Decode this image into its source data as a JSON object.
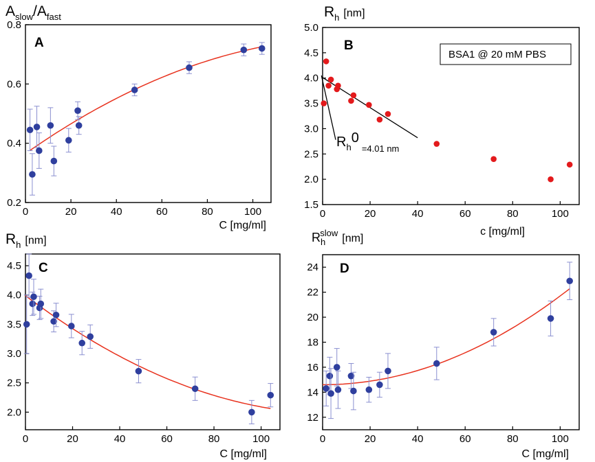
{
  "chart_data": [
    {
      "id": "A",
      "type": "scatter",
      "panel_label": "A",
      "title_main": "A",
      "title_sub1": "slow",
      "title_sep": "/A",
      "title_sub2": "fast",
      "xlabel": "C [mg/ml]",
      "xlim": [
        0,
        108
      ],
      "ylim": [
        0.2,
        0.8
      ],
      "xticks": [
        0,
        20,
        40,
        60,
        80,
        100
      ],
      "yticks": [
        0.2,
        0.4,
        0.6,
        0.8
      ],
      "ytick_labels": [
        "0.2",
        "0.4",
        "0.6",
        "0.8"
      ],
      "points": [
        {
          "x": 2,
          "y": 0.445,
          "err": 0.07
        },
        {
          "x": 3,
          "y": 0.295,
          "err": 0.07
        },
        {
          "x": 5,
          "y": 0.455,
          "err": 0.07
        },
        {
          "x": 6,
          "y": 0.375,
          "err": 0.06
        },
        {
          "x": 11,
          "y": 0.46,
          "err": 0.06
        },
        {
          "x": 12.5,
          "y": 0.34,
          "err": 0.05
        },
        {
          "x": 19,
          "y": 0.41,
          "err": 0.04
        },
        {
          "x": 23,
          "y": 0.51,
          "err": 0.03
        },
        {
          "x": 23.5,
          "y": 0.46,
          "err": 0.03
        },
        {
          "x": 48,
          "y": 0.58,
          "err": 0.02
        },
        {
          "x": 72,
          "y": 0.655,
          "err": 0.02
        },
        {
          "x": 96,
          "y": 0.715,
          "err": 0.02
        },
        {
          "x": 104,
          "y": 0.72,
          "err": 0.02
        }
      ],
      "fit_poly": [
        0.365,
        0.0054,
        -1.86e-05
      ],
      "fit_range": [
        2,
        104
      ]
    },
    {
      "id": "B",
      "type": "scatter",
      "panel_label": "B",
      "title_main": "R",
      "title_sub": "h",
      "title_unit": "[nm]",
      "xlabel": "c [mg/ml]",
      "xlim": [
        0,
        108
      ],
      "ylim": [
        1.5,
        5.0
      ],
      "xticks": [
        0,
        20,
        40,
        60,
        80,
        100
      ],
      "yticks": [
        1.5,
        2.0,
        2.5,
        3.0,
        3.5,
        4.0,
        4.5,
        5.0
      ],
      "ytick_labels": [
        "1.5",
        "2.0",
        "2.5",
        "3.0",
        "3.5",
        "4.0",
        "4.5",
        "5.0"
      ],
      "legend": "BSA1 @ 20 mM PBS",
      "points": [
        {
          "x": 0.5,
          "y": 3.5
        },
        {
          "x": 1.5,
          "y": 4.33
        },
        {
          "x": 2.5,
          "y": 3.85
        },
        {
          "x": 3.5,
          "y": 3.97
        },
        {
          "x": 6,
          "y": 3.78
        },
        {
          "x": 6.5,
          "y": 3.85
        },
        {
          "x": 12,
          "y": 3.55
        },
        {
          "x": 13,
          "y": 3.66
        },
        {
          "x": 19.5,
          "y": 3.47
        },
        {
          "x": 24,
          "y": 3.18
        },
        {
          "x": 27.5,
          "y": 3.29
        },
        {
          "x": 48,
          "y": 2.7
        },
        {
          "x": 72,
          "y": 2.4
        },
        {
          "x": 96,
          "y": 2.0
        },
        {
          "x": 104,
          "y": 2.29
        }
      ],
      "fit_line": {
        "x0": 0,
        "y0": 4.01,
        "x1": 40,
        "y1": 2.82
      },
      "annotation_main": "R",
      "annotation_sub": "h",
      "annotation_sup": "0",
      "annotation_value": "=4.01 nm",
      "annotation_pointer": {
        "x0": -0.5,
        "y0": 4.05,
        "x1": 5.5,
        "y1": 2.78
      }
    },
    {
      "id": "C",
      "type": "scatter",
      "panel_label": "C",
      "title_main": "R",
      "title_sub": "h",
      "title_unit": "[nm]",
      "xlabel": "C [mg/ml]",
      "xlim": [
        0,
        108
      ],
      "ylim": [
        1.7,
        4.7
      ],
      "xticks": [
        0,
        20,
        40,
        60,
        80,
        100
      ],
      "yticks": [
        2.0,
        2.5,
        3.0,
        3.5,
        4.0,
        4.5
      ],
      "ytick_labels": [
        "2.0",
        "2.5",
        "3.0",
        "3.5",
        "4.0",
        "4.5"
      ],
      "points": [
        {
          "x": 0.5,
          "y": 3.5,
          "err": 0.5
        },
        {
          "x": 1.5,
          "y": 4.33,
          "err": 0.37
        },
        {
          "x": 3,
          "y": 3.85,
          "err": 0.2
        },
        {
          "x": 3.5,
          "y": 3.97,
          "err": 0.3
        },
        {
          "x": 6,
          "y": 3.78,
          "err": 0.2
        },
        {
          "x": 6.5,
          "y": 3.85,
          "err": 0.25
        },
        {
          "x": 12,
          "y": 3.55,
          "err": 0.18
        },
        {
          "x": 13,
          "y": 3.66,
          "err": 0.2
        },
        {
          "x": 19.5,
          "y": 3.47,
          "err": 0.2
        },
        {
          "x": 24,
          "y": 3.18,
          "err": 0.2
        },
        {
          "x": 27.5,
          "y": 3.29,
          "err": 0.2
        },
        {
          "x": 48,
          "y": 2.7,
          "err": 0.2
        },
        {
          "x": 72,
          "y": 2.4,
          "err": 0.2
        },
        {
          "x": 96,
          "y": 2.0,
          "err": 0.2
        },
        {
          "x": 104,
          "y": 2.29,
          "err": 0.2
        }
      ],
      "fit_poly": [
        3.99,
        -0.0305,
        0.000115
      ],
      "fit_range": [
        0,
        104
      ]
    },
    {
      "id": "D",
      "type": "scatter",
      "panel_label": "D",
      "title_main": "R",
      "title_sub": "h",
      "title_sup": "slow",
      "title_unit": "[nm]",
      "xlabel": "C [mg/ml]",
      "xlim": [
        0,
        108
      ],
      "ylim": [
        11,
        25
      ],
      "xticks": [
        0,
        20,
        40,
        60,
        80,
        100
      ],
      "yticks": [
        12,
        14,
        16,
        18,
        20,
        22,
        24
      ],
      "ytick_labels": [
        "12",
        "14",
        "16",
        "18",
        "20",
        "22",
        "24"
      ],
      "points": [
        {
          "x": 1.5,
          "y": 14.3,
          "err": 1.4
        },
        {
          "x": 3,
          "y": 15.3,
          "err": 1.5
        },
        {
          "x": 3.5,
          "y": 13.9,
          "err": 2.0
        },
        {
          "x": 6,
          "y": 16.0,
          "err": 1.5
        },
        {
          "x": 6.5,
          "y": 14.2,
          "err": 1.5
        },
        {
          "x": 12,
          "y": 15.3,
          "err": 1.0
        },
        {
          "x": 13,
          "y": 14.1,
          "err": 1.5
        },
        {
          "x": 19.5,
          "y": 14.2,
          "err": 1.0
        },
        {
          "x": 24,
          "y": 14.6,
          "err": 1.0
        },
        {
          "x": 27.5,
          "y": 15.7,
          "err": 1.4
        },
        {
          "x": 48,
          "y": 16.3,
          "err": 1.3
        },
        {
          "x": 72,
          "y": 18.8,
          "err": 1.1
        },
        {
          "x": 96,
          "y": 19.9,
          "err": 1.4
        },
        {
          "x": 104,
          "y": 22.9,
          "err": 1.5
        }
      ],
      "fit_poly": [
        14.6,
        0.0,
        0.00071
      ],
      "fit_range": [
        0,
        104
      ]
    }
  ],
  "colors": {
    "marker": "#2f3f9e",
    "errorbar": "#8a8fd0",
    "fit": "#e8321e",
    "red_marker": "#e31a1c",
    "axis": "#000000"
  }
}
